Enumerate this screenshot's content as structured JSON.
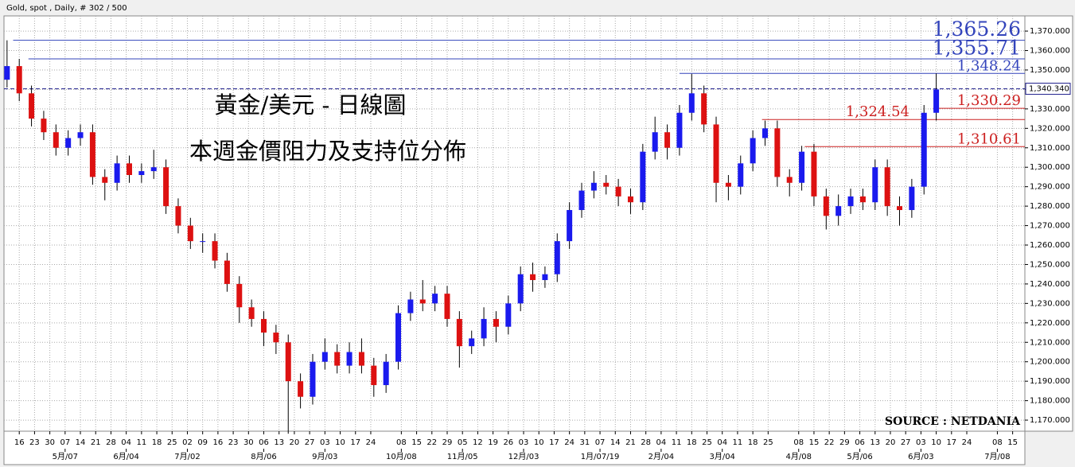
{
  "chart_data": {
    "type": "candlestick",
    "header": "Gold, spot , Daily, # 302 / 500",
    "title": "黃金/美元 - 日線圖",
    "subtitle": "本週金價阻力及支持位分佈",
    "source": "SOURCE : NETDANIA",
    "up_color": "#1a1aee",
    "down_color": "#dd1111",
    "grid": true,
    "xlim": [
      0,
      334
    ],
    "ylim": [
      1164.3,
      1377.8
    ],
    "yticks": [
      {
        "value": 1170,
        "label": "1,170.000"
      },
      {
        "value": 1180,
        "label": "1,180.000"
      },
      {
        "value": 1190,
        "label": "1,190.000"
      },
      {
        "value": 1200,
        "label": "1,200.000"
      },
      {
        "value": 1210,
        "label": "1,210.000"
      },
      {
        "value": 1220,
        "label": "1,220.000"
      },
      {
        "value": 1230,
        "label": "1,230.000"
      },
      {
        "value": 1240,
        "label": "1,240.000"
      },
      {
        "value": 1250,
        "label": "1,250.000"
      },
      {
        "value": 1260,
        "label": "1,260.000"
      },
      {
        "value": 1270,
        "label": "1,270.000"
      },
      {
        "value": 1280,
        "label": "1,280.000"
      },
      {
        "value": 1290,
        "label": "1,290.000"
      },
      {
        "value": 1300,
        "label": "1,300.000"
      },
      {
        "value": 1310,
        "label": "1,310.000"
      },
      {
        "value": 1320,
        "label": "1,320.000"
      },
      {
        "value": 1330,
        "label": "1,330.000"
      },
      {
        "value": 1340,
        "label": "1,340.000"
      },
      {
        "value": 1350,
        "label": "1,350.000"
      },
      {
        "value": 1360,
        "label": "1,360.000"
      },
      {
        "value": 1370,
        "label": "1,370.000"
      }
    ],
    "xticks": [
      {
        "value": 5,
        "label": "16"
      },
      {
        "value": 10,
        "label": "23"
      },
      {
        "value": 15,
        "label": "30"
      },
      {
        "value": 20,
        "label": "07"
      },
      {
        "value": 25,
        "label": "14"
      },
      {
        "value": 30,
        "label": "21"
      },
      {
        "value": 35,
        "label": "28"
      },
      {
        "value": 40,
        "label": "04"
      },
      {
        "value": 45,
        "label": "11"
      },
      {
        "value": 50,
        "label": "18"
      },
      {
        "value": 55,
        "label": "25"
      },
      {
        "value": 60,
        "label": "02"
      },
      {
        "value": 65,
        "label": "09"
      },
      {
        "value": 70,
        "label": "16"
      },
      {
        "value": 75,
        "label": "23"
      },
      {
        "value": 80,
        "label": "30"
      },
      {
        "value": 85,
        "label": "06"
      },
      {
        "value": 90,
        "label": "13"
      },
      {
        "value": 95,
        "label": "20"
      },
      {
        "value": 100,
        "label": "27"
      },
      {
        "value": 105,
        "label": "03"
      },
      {
        "value": 110,
        "label": "10"
      },
      {
        "value": 115,
        "label": "17"
      },
      {
        "value": 120,
        "label": "24"
      },
      {
        "value": 130,
        "label": "08"
      },
      {
        "value": 135,
        "label": "15"
      },
      {
        "value": 140,
        "label": "22"
      },
      {
        "value": 145,
        "label": "29"
      },
      {
        "value": 150,
        "label": "05"
      },
      {
        "value": 155,
        "label": "12"
      },
      {
        "value": 160,
        "label": "19"
      },
      {
        "value": 165,
        "label": "26"
      },
      {
        "value": 170,
        "label": "03"
      },
      {
        "value": 175,
        "label": "10"
      },
      {
        "value": 180,
        "label": "17"
      },
      {
        "value": 185,
        "label": "24"
      },
      {
        "value": 190,
        "label": "31"
      },
      {
        "value": 195,
        "label": "07"
      },
      {
        "value": 200,
        "label": "14"
      },
      {
        "value": 205,
        "label": "21"
      },
      {
        "value": 210,
        "label": "28"
      },
      {
        "value": 215,
        "label": "04"
      },
      {
        "value": 220,
        "label": "11"
      },
      {
        "value": 225,
        "label": "18"
      },
      {
        "value": 230,
        "label": "25"
      },
      {
        "value": 235,
        "label": "04"
      },
      {
        "value": 240,
        "label": "11"
      },
      {
        "value": 245,
        "label": "18"
      },
      {
        "value": 250,
        "label": "25"
      },
      {
        "value": 260,
        "label": "08"
      },
      {
        "value": 265,
        "label": "15"
      },
      {
        "value": 270,
        "label": "22"
      },
      {
        "value": 275,
        "label": "29"
      },
      {
        "value": 280,
        "label": "06"
      },
      {
        "value": 285,
        "label": "13"
      },
      {
        "value": 290,
        "label": "20"
      },
      {
        "value": 295,
        "label": "27"
      },
      {
        "value": 300,
        "label": "03"
      },
      {
        "value": 305,
        "label": "10"
      },
      {
        "value": 310,
        "label": "17"
      },
      {
        "value": 315,
        "label": "24"
      },
      {
        "value": 325,
        "label": "08"
      },
      {
        "value": 330,
        "label": "15"
      }
    ],
    "month_ticks": [
      {
        "value": 20,
        "label": "5月/07"
      },
      {
        "value": 40,
        "label": "6月/04"
      },
      {
        "value": 60,
        "label": "7月/02"
      },
      {
        "value": 85,
        "label": "8月/06"
      },
      {
        "value": 105,
        "label": "9月/03"
      },
      {
        "value": 130,
        "label": "10月/08"
      },
      {
        "value": 150,
        "label": "11月/05"
      },
      {
        "value": 170,
        "label": "12月/03"
      },
      {
        "value": 195,
        "label": "1月/07/19"
      },
      {
        "value": 215,
        "label": "2月/04"
      },
      {
        "value": 235,
        "label": "3月/04"
      },
      {
        "value": 260,
        "label": "4月/08"
      },
      {
        "value": 280,
        "label": "5月/06"
      },
      {
        "value": 300,
        "label": "6月/03"
      },
      {
        "value": 325,
        "label": "7月/08"
      }
    ],
    "x": [
      1,
      5,
      9,
      13,
      17,
      21,
      25,
      29,
      33,
      37,
      41,
      45,
      49,
      53,
      57,
      61,
      65,
      69,
      73,
      77,
      81,
      85,
      89,
      93,
      97,
      101,
      105,
      109,
      113,
      117,
      121,
      125,
      129,
      133,
      137,
      141,
      145,
      149,
      153,
      157,
      161,
      165,
      169,
      173,
      177,
      181,
      185,
      189,
      193,
      197,
      201,
      205,
      209,
      213,
      217,
      221,
      225,
      229,
      233,
      237,
      241,
      245,
      249,
      253,
      257,
      261,
      265,
      269,
      273,
      277,
      281,
      285,
      289,
      293,
      297,
      301,
      305
    ],
    "open": [
      1345,
      1352,
      1338,
      1325,
      1318,
      1310,
      1315,
      1318,
      1295,
      1292,
      1302,
      1296,
      1298,
      1300,
      1280,
      1270,
      1262,
      1262,
      1252,
      1240,
      1228,
      1222,
      1215,
      1210,
      1190,
      1182,
      1200,
      1205,
      1198,
      1205,
      1198,
      1188,
      1200,
      1225,
      1232,
      1230,
      1235,
      1222,
      1208,
      1212,
      1222,
      1218,
      1230,
      1245,
      1242,
      1245,
      1262,
      1278,
      1288,
      1292,
      1290,
      1285,
      1282,
      1308,
      1318,
      1310,
      1328,
      1338,
      1322,
      1292,
      1290,
      1302,
      1315,
      1320,
      1295,
      1292,
      1308,
      1285,
      1275,
      1280,
      1285,
      1282,
      1300,
      1280,
      1278,
      1290,
      1328
    ],
    "high": [
      1365.26,
      1355.71,
      1342,
      1329,
      1322,
      1319,
      1322,
      1322,
      1299,
      1306,
      1306,
      1302,
      1309,
      1304,
      1284,
      1274,
      1266,
      1266,
      1256,
      1244,
      1232,
      1226,
      1219,
      1214,
      1194,
      1204,
      1212,
      1209,
      1210,
      1212,
      1202,
      1204,
      1229,
      1236,
      1242,
      1239,
      1239,
      1226,
      1216,
      1228,
      1226,
      1234,
      1249,
      1251,
      1249,
      1266,
      1282,
      1292,
      1298,
      1296,
      1294,
      1289,
      1312,
      1326,
      1322,
      1332,
      1348,
      1342,
      1326,
      1296,
      1306,
      1319,
      1324,
      1324,
      1299,
      1311,
      1312,
      1289,
      1286,
      1289,
      1289,
      1304,
      1304,
      1285,
      1294,
      1332,
      1348.24
    ],
    "low": [
      1341,
      1334,
      1321,
      1314,
      1306,
      1306,
      1311,
      1291,
      1283,
      1288,
      1292,
      1292,
      1294,
      1276,
      1266,
      1258,
      1256,
      1248,
      1236,
      1220,
      1218,
      1208,
      1204,
      1163,
      1176,
      1178,
      1196,
      1194,
      1194,
      1194,
      1182,
      1184,
      1196,
      1221,
      1226,
      1226,
      1218,
      1197,
      1204,
      1208,
      1210,
      1214,
      1226,
      1236,
      1238,
      1241,
      1258,
      1274,
      1284,
      1286,
      1280,
      1276,
      1278,
      1304,
      1304,
      1306,
      1324,
      1318,
      1282,
      1283,
      1286,
      1298,
      1311,
      1290,
      1285,
      1288,
      1280,
      1268,
      1270,
      1276,
      1278,
      1278,
      1275,
      1270,
      1274,
      1286,
      1324
    ],
    "close": [
      1352,
      1338,
      1325,
      1318,
      1310,
      1315,
      1318,
      1295,
      1292,
      1302,
      1296,
      1298,
      1300,
      1280,
      1270,
      1262,
      1262,
      1252,
      1240,
      1228,
      1222,
      1215,
      1210,
      1190,
      1182,
      1200,
      1205,
      1198,
      1205,
      1198,
      1188,
      1200,
      1225,
      1232,
      1230,
      1235,
      1222,
      1208,
      1212,
      1222,
      1218,
      1230,
      1245,
      1242,
      1245,
      1262,
      1278,
      1288,
      1292,
      1290,
      1285,
      1282,
      1308,
      1318,
      1310,
      1328,
      1338,
      1322,
      1292,
      1290,
      1302,
      1315,
      1320,
      1295,
      1292,
      1308,
      1285,
      1275,
      1280,
      1285,
      1282,
      1300,
      1280,
      1278,
      1290,
      1328,
      1340
    ],
    "current_price": {
      "value": 1340.34,
      "label": "1,340.340",
      "color": "#1a1a8a"
    },
    "levels": [
      {
        "value": 1365.26,
        "label": "1,365.26",
        "color": "#3344bb",
        "start": 3
      },
      {
        "value": 1355.71,
        "label": "1,355.71",
        "color": "#3344bb",
        "start": 8
      },
      {
        "value": 1348.24,
        "label": "1,348.24",
        "color": "#3344bb",
        "start": 221
      },
      {
        "value": 1330.29,
        "label": "1,330.29",
        "color": "#cc2020",
        "start": 304
      },
      {
        "value": 1324.54,
        "label": "1,324.54",
        "color": "#cc2020",
        "start": 248
      },
      {
        "value": 1310.61,
        "label": "1,310.61",
        "color": "#cc2020",
        "start": 262
      }
    ]
  }
}
